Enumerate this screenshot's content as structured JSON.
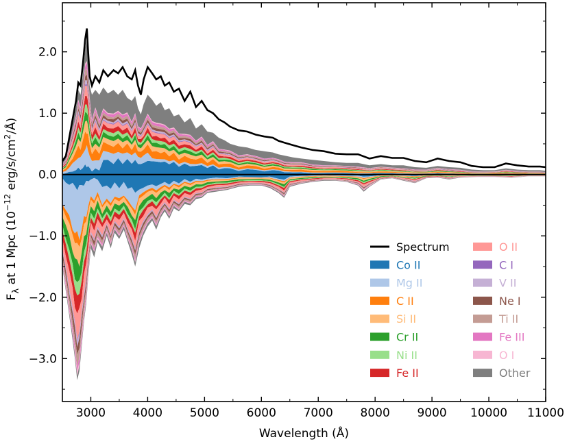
{
  "chart_data": {
    "type": "area",
    "title": "",
    "xlabel": "Wavelength (Å)",
    "ylabel": {
      "prefix": "F",
      "sub": "λ",
      "mid": " at 1 Mpc (10",
      "sup": "−12",
      "mid2": " erg/s/cm",
      "sup2": "2",
      "end": "/Å)"
    },
    "xlim": [
      2500,
      11000
    ],
    "ylim": [
      -3.7,
      2.8
    ],
    "xticks": [
      3000,
      4000,
      5000,
      6000,
      7000,
      8000,
      9000,
      10000,
      11000
    ],
    "xtick_labels": [
      "3000",
      "4000",
      "5000",
      "6000",
      "7000",
      "8000",
      "9000",
      "10000",
      "11000"
    ],
    "yticks": [
      2.0,
      1.0,
      0.0,
      -1.0,
      -2.0,
      -3.0
    ],
    "ytick_labels": [
      "2.0",
      "1.0",
      "0.0",
      "−1.0",
      "−2.0",
      "−3.0"
    ],
    "legend_position": "lower-right",
    "spectrum": {
      "name": "Spectrum",
      "color": "#000000",
      "x": [
        2500,
        2560,
        2620,
        2680,
        2740,
        2780,
        2820,
        2860,
        2900,
        2930,
        2950,
        2980,
        3020,
        3080,
        3150,
        3220,
        3300,
        3400,
        3480,
        3560,
        3640,
        3720,
        3780,
        3830,
        3880,
        3930,
        4000,
        4080,
        4150,
        4230,
        4300,
        4380,
        4460,
        4550,
        4650,
        4750,
        4850,
        4950,
        5050,
        5150,
        5250,
        5350,
        5450,
        5600,
        5750,
        5900,
        6050,
        6200,
        6300,
        6400,
        6550,
        6700,
        6900,
        7100,
        7300,
        7500,
        7700,
        7900,
        8100,
        8300,
        8500,
        8700,
        8900,
        9100,
        9300,
        9500,
        9700,
        9900,
        10100,
        10300,
        10500,
        10700,
        10900,
        11000
      ],
      "y": [
        0.22,
        0.3,
        0.6,
        0.9,
        1.2,
        1.5,
        1.45,
        1.8,
        2.2,
        2.38,
        2.05,
        1.6,
        1.45,
        1.6,
        1.5,
        1.7,
        1.6,
        1.7,
        1.65,
        1.75,
        1.6,
        1.55,
        1.7,
        1.45,
        1.3,
        1.55,
        1.75,
        1.65,
        1.55,
        1.6,
        1.45,
        1.5,
        1.35,
        1.4,
        1.2,
        1.35,
        1.1,
        1.2,
        1.05,
        1.0,
        0.9,
        0.85,
        0.78,
        0.72,
        0.7,
        0.65,
        0.62,
        0.6,
        0.55,
        0.52,
        0.48,
        0.44,
        0.4,
        0.38,
        0.34,
        0.33,
        0.33,
        0.26,
        0.3,
        0.27,
        0.27,
        0.22,
        0.2,
        0.26,
        0.22,
        0.2,
        0.14,
        0.12,
        0.12,
        0.18,
        0.15,
        0.13,
        0.13,
        0.12
      ]
    },
    "species": [
      {
        "name": "Co II",
        "color": "#1f77b4",
        "weight": 0.16,
        "neg_weight": 0.17
      },
      {
        "name": "Mg II",
        "color": "#aec7e8",
        "weight": 0.1,
        "neg_weight": 0.2
      },
      {
        "name": "C II",
        "color": "#ff7f0e",
        "weight": 0.09,
        "neg_weight": 0.04
      },
      {
        "name": "Si II",
        "color": "#ffbb78",
        "weight": 0.06,
        "neg_weight": 0.07
      },
      {
        "name": "Cr II",
        "color": "#2ca02c",
        "weight": 0.05,
        "neg_weight": 0.08
      },
      {
        "name": "Ni II",
        "color": "#98df8a",
        "weight": 0.04,
        "neg_weight": 0.05
      },
      {
        "name": "Fe II",
        "color": "#d62728",
        "weight": 0.05,
        "neg_weight": 0.07
      },
      {
        "name": "O II",
        "color": "#ff9896",
        "weight": 0.05,
        "neg_weight": 0.09
      },
      {
        "name": "C I",
        "color": "#9467bd",
        "weight": 0.03,
        "neg_weight": 0.02
      },
      {
        "name": "V II",
        "color": "#c5b0d5",
        "weight": 0.02,
        "neg_weight": 0.02
      },
      {
        "name": "Ne I",
        "color": "#8c564b",
        "weight": 0.03,
        "neg_weight": 0.04
      },
      {
        "name": "Ti II",
        "color": "#c49c94",
        "weight": 0.03,
        "neg_weight": 0.04
      },
      {
        "name": "Fe III",
        "color": "#e377c2",
        "weight": 0.03,
        "neg_weight": 0.02
      },
      {
        "name": "O I",
        "color": "#f7b6d2",
        "weight": 0.03,
        "neg_weight": 0.04
      },
      {
        "name": "Other",
        "color": "#7f7f7f",
        "weight": 0.24,
        "neg_weight": 0.05
      }
    ],
    "emission_envelope": {
      "x": [
        2500,
        2560,
        2620,
        2680,
        2740,
        2780,
        2820,
        2860,
        2900,
        2930,
        2950,
        2980,
        3020,
        3080,
        3150,
        3220,
        3300,
        3400,
        3480,
        3560,
        3640,
        3720,
        3780,
        3830,
        3880,
        3930,
        4000,
        4080,
        4150,
        4230,
        4300,
        4380,
        4460,
        4550,
        4650,
        4750,
        4850,
        4950,
        5050,
        5150,
        5250,
        5350,
        5450,
        5600,
        5750,
        5900,
        6050,
        6200,
        6300,
        6400,
        6550,
        6700,
        6900,
        7100,
        7300,
        7500,
        7700,
        7900,
        8100,
        8300,
        8500,
        8700,
        8900,
        9100,
        9300,
        9500,
        9700,
        9900,
        10100,
        10300,
        10500,
        10700,
        10900,
        11000
      ],
      "y": [
        0.2,
        0.28,
        0.55,
        0.85,
        1.1,
        1.38,
        1.3,
        1.62,
        2.05,
        2.2,
        1.9,
        1.45,
        1.3,
        1.38,
        1.3,
        1.42,
        1.32,
        1.38,
        1.3,
        1.38,
        1.25,
        1.2,
        1.28,
        1.08,
        0.98,
        1.15,
        1.3,
        1.22,
        1.12,
        1.18,
        1.05,
        1.08,
        0.95,
        0.98,
        0.85,
        0.92,
        0.75,
        0.82,
        0.7,
        0.68,
        0.6,
        0.56,
        0.5,
        0.46,
        0.44,
        0.4,
        0.38,
        0.36,
        0.33,
        0.31,
        0.28,
        0.26,
        0.24,
        0.22,
        0.2,
        0.19,
        0.19,
        0.15,
        0.17,
        0.15,
        0.15,
        0.12,
        0.11,
        0.14,
        0.12,
        0.11,
        0.08,
        0.07,
        0.07,
        0.1,
        0.08,
        0.07,
        0.07,
        0.06
      ]
    },
    "absorption_envelope": {
      "x": [
        2500,
        2560,
        2620,
        2680,
        2720,
        2760,
        2800,
        2840,
        2880,
        2920,
        2960,
        3000,
        3060,
        3120,
        3200,
        3280,
        3350,
        3420,
        3500,
        3580,
        3650,
        3720,
        3780,
        3850,
        3920,
        4000,
        4080,
        4150,
        4230,
        4300,
        4380,
        4460,
        4550,
        4650,
        4750,
        4850,
        4950,
        5050,
        5200,
        5400,
        5600,
        5800,
        6000,
        6150,
        6300,
        6400,
        6500,
        6700,
        6900,
        7100,
        7300,
        7500,
        7700,
        7800,
        7900,
        8100,
        8300,
        8500,
        8700,
        8900,
        9100,
        9300,
        9500,
        9800,
        10100,
        10400,
        10700,
        11000
      ],
      "y": [
        -1.5,
        -1.9,
        -2.3,
        -2.7,
        -3.0,
        -3.35,
        -3.2,
        -2.8,
        -2.4,
        -2.1,
        -1.6,
        -1.2,
        -1.35,
        -1.1,
        -1.25,
        -1.0,
        -1.2,
        -0.95,
        -1.05,
        -0.9,
        -1.1,
        -1.3,
        -1.5,
        -1.2,
        -1.0,
        -0.85,
        -0.75,
        -0.9,
        -0.7,
        -0.6,
        -0.72,
        -0.55,
        -0.6,
        -0.48,
        -0.5,
        -0.4,
        -0.38,
        -0.3,
        -0.28,
        -0.25,
        -0.2,
        -0.18,
        -0.18,
        -0.22,
        -0.3,
        -0.38,
        -0.2,
        -0.15,
        -0.12,
        -0.1,
        -0.1,
        -0.12,
        -0.18,
        -0.28,
        -0.2,
        -0.08,
        -0.06,
        -0.1,
        -0.14,
        -0.06,
        -0.05,
        -0.08,
        -0.05,
        -0.04,
        -0.04,
        -0.05,
        -0.03,
        -0.03
      ]
    }
  }
}
